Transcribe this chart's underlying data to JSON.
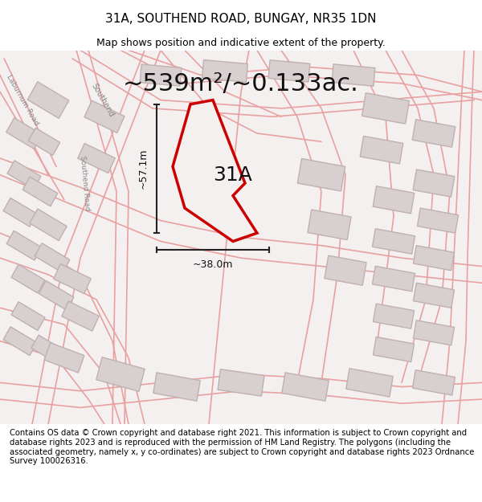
{
  "title": "31A, SOUTHEND ROAD, BUNGAY, NR35 1DN",
  "subtitle": "Map shows position and indicative extent of the property.",
  "area_text": "~539m²/~0.133ac.",
  "label_31a": "31A",
  "dim_height": "~57.1m",
  "dim_width": "~38.0m",
  "footer": "Contains OS data © Crown copyright and database right 2021. This information is subject to Crown copyright and database rights 2023 and is reproduced with the permission of HM Land Registry. The polygons (including the associated geometry, namely x, y co-ordinates) are subject to Crown copyright and database rights 2023 Ordnance Survey 100026316.",
  "background_color": "#ffffff",
  "map_bg": "#f5f0f0",
  "road_color": "#e8a0a0",
  "building_fill": "#d8d0d0",
  "building_edge": "#c0b0b0",
  "highlight_fill": "#f5f0f0",
  "highlight_edge": "#cc0000",
  "dim_line_color": "#222222",
  "title_fontsize": 11,
  "subtitle_fontsize": 9,
  "area_fontsize": 22,
  "label_fontsize": 18,
  "footer_fontsize": 7.2
}
